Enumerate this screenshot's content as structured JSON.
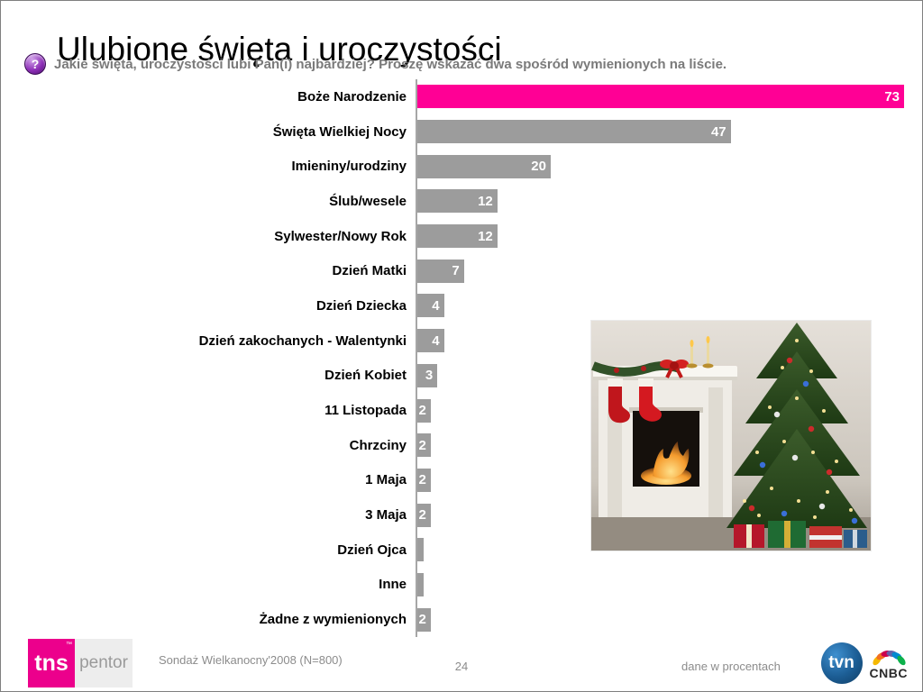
{
  "slide": {
    "title": "Ulubione święta i uroczystości",
    "question": "Jakie święta, uroczystości lubi Pan(i) najbardziej? Proszę wskazać dwa spośród wymienionych na liście.",
    "question_icon_glyph": "?",
    "footer": {
      "source": "Sondaż Wielkanocny'2008 (N=800)",
      "page_number": "24",
      "note": "dane w procentach"
    },
    "logos": {
      "tns_label": "tns",
      "tns_tm": "™",
      "pentor_label": "pentor",
      "tvn_label": "tvn",
      "cnbc_label": "CNBC"
    },
    "colors": {
      "brand_pink": "#EC008C",
      "question_gray": "#7a7a7a"
    }
  },
  "chart_data": {
    "type": "bar",
    "orientation": "horizontal",
    "title": "",
    "xlabel": "",
    "ylabel": "",
    "units": "percent",
    "grid": false,
    "legend": false,
    "xlim": [
      0,
      73
    ],
    "categories": [
      "Boże Narodzenie",
      "Święta Wielkiej Nocy",
      "Imieniny/urodziny",
      "Ślub/wesele",
      "Sylwester/Nowy Rok",
      "Dzień Matki",
      "Dzień Dziecka",
      "Dzień zakochanych - Walentynki",
      "Dzień Kobiet",
      "11 Listopada",
      "Chrzciny",
      "1 Maja",
      "3 Maja",
      "Dzień Ojca",
      "Inne",
      "Żadne z wymienionych"
    ],
    "values": [
      73,
      47,
      20,
      12,
      12,
      7,
      4,
      4,
      3,
      2,
      2,
      2,
      2,
      1,
      1,
      2
    ],
    "highlight_index": 0,
    "highlight_color": "#FF0095",
    "bar_color": "#9C9C9C",
    "value_label_color": "#FFFFFF",
    "value_label_min": 2
  }
}
